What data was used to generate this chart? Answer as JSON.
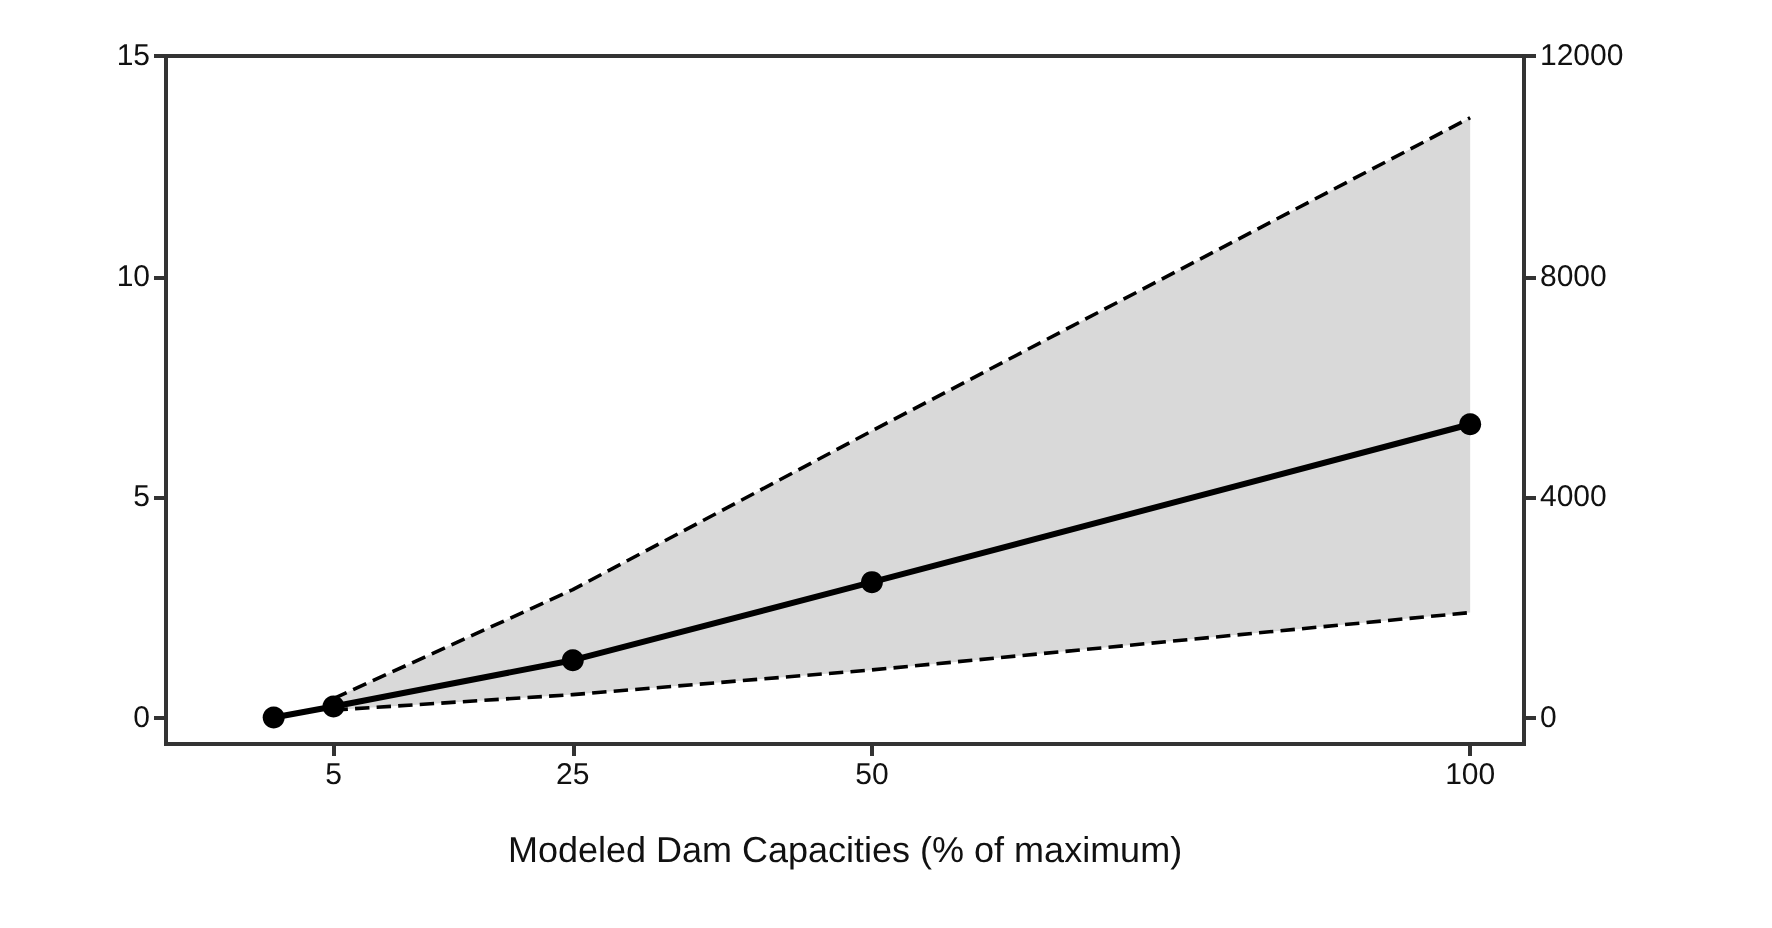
{
  "chart_data": {
    "type": "line",
    "xlabel": "Modeled Dam Capacities (% of maximum)",
    "x": [
      0,
      5,
      25,
      50,
      100
    ],
    "series": [
      {
        "color": "#000000",
        "values": [
          0,
          0.25,
          1.3,
          3.07,
          6.65
        ],
        "lower": [
          null,
          0.17,
          0.52,
          1.08,
          2.38
        ],
        "upper": [
          null,
          0.43,
          2.9,
          6.5,
          13.6
        ]
      },
      {
        "color": "#000000",
        "values": [
          null,
          0.17,
          0.52,
          1.08,
          2.38
        ],
        "line_style": "dashed",
        "marker": "none"
      },
      {
        "color": "#000000",
        "values": [
          null,
          0.43,
          2.9,
          6.5,
          13.6
        ],
        "line_style": "dashed",
        "marker": "none"
      }
    ],
    "xlim": [
      -9,
      104.5
    ],
    "xticks": [
      5,
      25,
      50,
      100
    ],
    "ylim": [
      -0.6,
      15
    ],
    "yticks": [
      0,
      5,
      10,
      15
    ],
    "y2lim": [
      -480,
      12000
    ],
    "y2ticks": [
      0,
      4000,
      8000,
      12000
    ],
    "grid": false,
    "marker": "circle",
    "line_style": "solid"
  }
}
